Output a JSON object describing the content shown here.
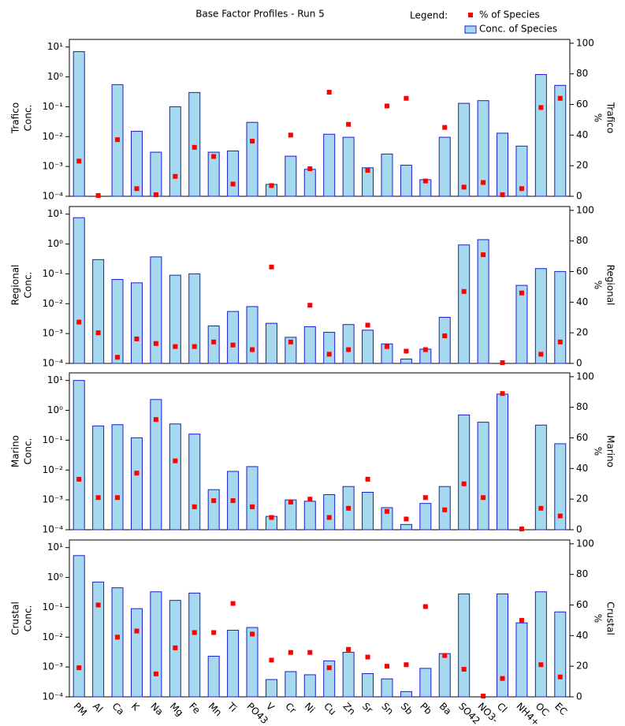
{
  "title": "Base Factor Profiles - Run 5",
  "legend_title": "Legend:",
  "chart_data": [
    {
      "type": "bar",
      "name": "Trafico",
      "ylabel": "Conc.",
      "y2label": "%",
      "log_scale": true,
      "ylim": [
        0.0001,
        18
      ],
      "yticks": [
        {
          "value": 0.0001,
          "label": "10⁻⁴"
        },
        {
          "value": 0.001,
          "label": "10⁻³"
        },
        {
          "value": 0.01,
          "label": "10⁻²"
        },
        {
          "value": 0.1,
          "label": "10⁻¹"
        },
        {
          "value": 1,
          "label": "10⁰"
        },
        {
          "value": 10,
          "label": "10¹"
        }
      ],
      "y2lim": [
        0,
        102.5
      ],
      "y2ticks": [
        0,
        20,
        40,
        60,
        80,
        100
      ],
      "series": [
        {
          "name": "Conc. of Species",
          "color": "#a6d9ee",
          "edge": "#1c1cd0",
          "values": [
            7,
            null,
            0.55,
            0.015,
            0.003,
            0.1,
            0.3,
            0.003,
            0.0033,
            0.03,
            0.00025,
            0.0022,
            0.0008,
            0.012,
            0.0095,
            0.0009,
            0.0026,
            0.0011,
            0.00036,
            0.0095,
            0.13,
            0.16,
            0.013,
            0.0048,
            1.2,
            0.52
          ]
        },
        {
          "name": "% of Species",
          "color": "#ff0000",
          "axis": "y2",
          "values": [
            23,
            0.5,
            37,
            5,
            1,
            13,
            32,
            26,
            8,
            36,
            7,
            40,
            18,
            68,
            47,
            17,
            59,
            64,
            10,
            45,
            6,
            9,
            1,
            5,
            58,
            64
          ]
        }
      ]
    },
    {
      "type": "bar",
      "name": "Regional",
      "ylabel": "Conc.",
      "y2label": "%",
      "log_scale": true,
      "ylim": [
        0.0001,
        18
      ],
      "yticks": [
        {
          "value": 0.0001,
          "label": "10⁻⁴"
        },
        {
          "value": 0.001,
          "label": "10⁻³"
        },
        {
          "value": 0.01,
          "label": "10⁻²"
        },
        {
          "value": 0.1,
          "label": "10⁻¹"
        },
        {
          "value": 1,
          "label": "10⁰"
        },
        {
          "value": 10,
          "label": "10¹"
        }
      ],
      "y2lim": [
        0,
        102.5
      ],
      "y2ticks": [
        0,
        20,
        40,
        60,
        80,
        100
      ],
      "series": [
        {
          "color": "#a6d9ee",
          "edge": "#1c1cd0",
          "values": [
            7.6,
            0.3,
            0.065,
            0.05,
            0.37,
            0.09,
            0.1,
            0.0018,
            0.0055,
            0.008,
            0.0022,
            0.00075,
            0.0017,
            0.0011,
            0.002,
            0.0013,
            0.00045,
            0.00014,
            0.0003,
            0.0035,
            0.93,
            1.4,
            null,
            0.041,
            0.15,
            0.12
          ]
        },
        {
          "color": "#ff0000",
          "axis": "y2",
          "values": [
            27,
            20,
            4,
            16,
            13,
            11,
            11,
            14,
            12,
            9,
            63,
            14,
            38,
            6,
            9,
            25,
            11,
            8,
            9,
            18,
            47,
            71,
            0.5,
            46,
            6,
            14
          ]
        }
      ]
    },
    {
      "type": "bar",
      "name": "Marino",
      "ylabel": "Conc.",
      "y2label": "%",
      "log_scale": true,
      "ylim": [
        0.0001,
        18
      ],
      "yticks": [
        {
          "value": 0.0001,
          "label": "10⁻⁴"
        },
        {
          "value": 0.001,
          "label": "10⁻³"
        },
        {
          "value": 0.01,
          "label": "10⁻²"
        },
        {
          "value": 0.1,
          "label": "10⁻¹"
        },
        {
          "value": 1,
          "label": "10⁰"
        },
        {
          "value": 10,
          "label": "10¹"
        }
      ],
      "y2lim": [
        0,
        102.5
      ],
      "y2ticks": [
        0,
        20,
        40,
        60,
        80,
        100
      ],
      "series": [
        {
          "color": "#a6d9ee",
          "edge": "#1c1cd0",
          "values": [
            10,
            0.3,
            0.33,
            0.12,
            2.3,
            0.35,
            0.16,
            0.0022,
            0.009,
            0.013,
            0.00028,
            0.001,
            0.0009,
            0.0015,
            0.0028,
            0.0018,
            0.00055,
            0.00015,
            0.00076,
            0.0028,
            0.7,
            0.4,
            3.5,
            null,
            0.32,
            0.076
          ]
        },
        {
          "color": "#ff0000",
          "axis": "y2",
          "values": [
            33,
            21,
            21,
            37,
            72,
            45,
            15,
            19,
            19,
            15,
            8,
            18,
            20,
            8,
            14,
            33,
            12,
            7,
            21,
            13,
            30,
            21,
            89,
            0.5,
            14,
            9
          ]
        }
      ]
    },
    {
      "type": "bar",
      "name": "Crustal",
      "ylabel": "Conc.",
      "y2label": "%",
      "log_scale": true,
      "categories": [
        "PM",
        "Al",
        "Ca",
        "K",
        "Na",
        "Mg",
        "Fe",
        "Mn",
        "Ti",
        "PO43",
        "V",
        "Cr",
        "Ni",
        "Cu",
        "Zn",
        "Sr",
        "Sn",
        "Sb",
        "Pb",
        "Ba",
        "SO42",
        "NO3-",
        "Cl",
        "NH4+",
        "OC",
        "EC"
      ],
      "ylim": [
        0.0001,
        18
      ],
      "yticks": [
        {
          "value": 0.0001,
          "label": "10⁻⁴"
        },
        {
          "value": 0.001,
          "label": "10⁻³"
        },
        {
          "value": 0.01,
          "label": "10⁻²"
        },
        {
          "value": 0.1,
          "label": "10⁻¹"
        },
        {
          "value": 1,
          "label": "10⁰"
        },
        {
          "value": 10,
          "label": "10¹"
        }
      ],
      "y2lim": [
        0,
        102.5
      ],
      "y2ticks": [
        0,
        20,
        40,
        60,
        80,
        100
      ],
      "series": [
        {
          "color": "#a6d9ee",
          "edge": "#1c1cd0",
          "values": [
            5.4,
            0.7,
            0.45,
            0.09,
            0.33,
            0.17,
            0.3,
            0.0023,
            0.017,
            0.021,
            0.00038,
            0.0007,
            0.00055,
            0.0016,
            0.0031,
            0.0006,
            0.0004,
            0.00015,
            0.0009,
            0.0028,
            0.28,
            null,
            0.28,
            0.03,
            0.33,
            0.07
          ]
        },
        {
          "color": "#ff0000",
          "axis": "y2",
          "values": [
            19,
            60,
            39,
            43,
            15,
            32,
            42,
            42,
            61,
            41,
            24,
            29,
            29,
            19,
            31,
            26,
            20,
            21,
            59,
            27,
            18,
            0.5,
            12,
            50,
            21,
            13
          ]
        }
      ]
    }
  ]
}
